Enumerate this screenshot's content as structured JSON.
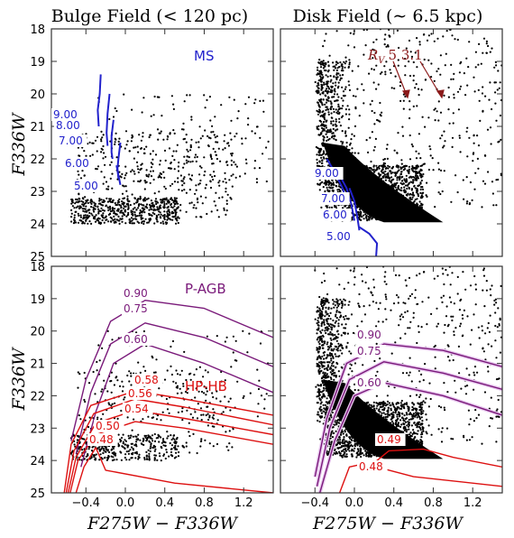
{
  "figure": {
    "titles": [
      "Bulge Field (< 120 pc)",
      "Disk Field (∼ 6.5 kpc)"
    ],
    "ylabel": "F336W",
    "xlabel": "F275W − F336W"
  },
  "chart_data": [
    {
      "panel": "top-left",
      "type": "scatter",
      "title": "Bulge Field (< 120 pc)",
      "xlabel": "",
      "ylabel": "F336W",
      "xlim": [
        -0.75,
        1.5
      ],
      "ylim": [
        25,
        18
      ],
      "y_inverted": true,
      "yticks": [
        18,
        19,
        20,
        21,
        22,
        23,
        24,
        25
      ],
      "annotations": [
        {
          "text": "MS",
          "color": "#2222cc"
        }
      ],
      "series": [
        {
          "kind": "stars",
          "note": "field stars, densest near F336W 23.5-24, colour -0.5 to 0.5",
          "count": 1000
        },
        {
          "kind": "isochrones",
          "color": "#2222cc",
          "labels": [
            "9.00",
            "8.00",
            "7.00",
            "6.00",
            "5.00"
          ],
          "curves": [
            {
              "label": "9.00",
              "points": [
                [
                  -0.25,
                  19.4
                ],
                [
                  -0.26,
                  20.0
                ],
                [
                  -0.28,
                  20.5
                ],
                [
                  -0.27,
                  21.0
                ]
              ]
            },
            {
              "label": "8.00",
              "points": [
                [
                  -0.16,
                  20.0
                ],
                [
                  -0.18,
                  20.6
                ],
                [
                  -0.19,
                  21.2
                ],
                [
                  -0.18,
                  21.6
                ]
              ]
            },
            {
              "label": "7.00",
              "points": [
                [
                  -0.12,
                  20.8
                ],
                [
                  -0.14,
                  21.3
                ],
                [
                  -0.14,
                  21.8
                ],
                [
                  -0.13,
                  22.0
                ]
              ]
            },
            {
              "label": "6.00",
              "points": [
                [
                  -0.05,
                  21.5
                ],
                [
                  -0.07,
                  22.0
                ],
                [
                  -0.08,
                  22.3
                ],
                [
                  -0.07,
                  22.6
                ]
              ]
            },
            {
              "label": "5.00",
              "points": [
                [
                  -0.09,
                  22.2
                ],
                [
                  -0.07,
                  22.5
                ],
                [
                  -0.05,
                  22.8
                ]
              ]
            }
          ]
        }
      ]
    },
    {
      "panel": "top-right",
      "type": "scatter",
      "title": "Disk Field (∼ 6.5 kpc)",
      "xlim": [
        -0.75,
        1.5
      ],
      "ylim": [
        25,
        18
      ],
      "y_inverted": true,
      "annotations": [
        {
          "text": "R_V 5 3.1",
          "color": "#8b1a1a",
          "arrows": [
            {
              "from": [
                0.42,
                19.6
              ],
              "to": [
                0.52,
                20.5
              ]
            },
            {
              "from": [
                0.7,
                19.6
              ],
              "to": [
                0.85,
                20.5
              ]
            }
          ]
        }
      ],
      "series": [
        {
          "kind": "stars",
          "note": "dense disk population; black region colour -0.35 to 0.8 at F336W 22-24",
          "count": 2200
        },
        {
          "kind": "isochrones",
          "color": "#2222cc",
          "labels": [
            "9.00",
            "7.00",
            "6.00",
            "5.00"
          ],
          "curves": [
            {
              "label": "9.00",
              "points": [
                [
                  -0.28,
                  22.0
                ],
                [
                  -0.2,
                  22.4
                ],
                [
                  -0.12,
                  22.9
                ],
                [
                  -0.08,
                  23.3
                ]
              ]
            },
            {
              "label": "7.00",
              "points": [
                [
                  -0.15,
                  22.5
                ],
                [
                  -0.08,
                  22.9
                ],
                [
                  -0.03,
                  23.4
                ],
                [
                  0.0,
                  23.9
                ]
              ]
            },
            {
              "label": "6.00",
              "points": [
                [
                  -0.05,
                  22.9
                ],
                [
                  0.0,
                  23.3
                ],
                [
                  0.03,
                  23.8
                ],
                [
                  0.05,
                  24.2
                ]
              ]
            },
            {
              "label": "5.00",
              "points": [
                [
                  0.05,
                  24.1
                ],
                [
                  0.15,
                  24.3
                ],
                [
                  0.23,
                  24.6
                ],
                [
                  0.22,
                  25.0
                ]
              ]
            }
          ]
        }
      ]
    },
    {
      "panel": "bottom-left",
      "type": "scatter",
      "xlabel": "F275W − F336W",
      "ylabel": "F336W",
      "xlim": [
        -0.75,
        1.5
      ],
      "ylim": [
        25,
        18
      ],
      "y_inverted": true,
      "xticks": [
        -0.4,
        0.0,
        0.4,
        0.8,
        1.2
      ],
      "yticks": [
        18,
        19,
        20,
        21,
        22,
        23,
        24,
        25
      ],
      "annotations": [
        {
          "text": "P-AGB",
          "color": "#7a1a7a"
        },
        {
          "text": "HP-HB",
          "color": "#dd1111"
        }
      ],
      "series": [
        {
          "kind": "stars",
          "count": 700
        },
        {
          "kind": "post-AGB tracks",
          "color": "#7a1a7a",
          "curves": [
            {
              "label": "0.90",
              "points": [
                [
                  -0.55,
                  23.4
                ],
                [
                  -0.4,
                  21.5
                ],
                [
                  -0.15,
                  19.7
                ],
                [
                  0.2,
                  19.05
                ],
                [
                  0.8,
                  19.3
                ],
                [
                  1.5,
                  20.2
                ]
              ]
            },
            {
              "label": "0.75",
              "points": [
                [
                  -0.5,
                  23.8
                ],
                [
                  -0.35,
                  21.9
                ],
                [
                  -0.15,
                  20.4
                ],
                [
                  0.2,
                  19.75
                ],
                [
                  0.8,
                  20.2
                ],
                [
                  1.5,
                  21.1
                ]
              ]
            },
            {
              "label": "0.60",
              "points": [
                [
                  -0.45,
                  24.2
                ],
                [
                  -0.3,
                  22.5
                ],
                [
                  -0.12,
                  21.0
                ],
                [
                  0.2,
                  20.4
                ],
                [
                  0.8,
                  21.0
                ],
                [
                  1.5,
                  21.9
                ]
              ]
            }
          ]
        },
        {
          "kind": "HP-HB tracks",
          "color": "#dd1111",
          "curves": [
            {
              "label": "0.58",
              "points": [
                [
                  -0.62,
                  25.0
                ],
                [
                  -0.55,
                  23.5
                ],
                [
                  -0.35,
                  22.3
                ],
                [
                  0.1,
                  21.85
                ],
                [
                  0.6,
                  22.1
                ],
                [
                  1.5,
                  22.6
                ]
              ]
            },
            {
              "label": "0.56",
              "points": [
                [
                  -0.6,
                  25.0
                ],
                [
                  -0.52,
                  23.7
                ],
                [
                  -0.32,
                  22.55
                ],
                [
                  0.1,
                  22.1
                ],
                [
                  0.6,
                  22.35
                ],
                [
                  1.5,
                  22.9
                ]
              ]
            },
            {
              "label": "0.54",
              "points": [
                [
                  -0.58,
                  25.0
                ],
                [
                  -0.5,
                  23.9
                ],
                [
                  -0.3,
                  22.85
                ],
                [
                  0.1,
                  22.45
                ],
                [
                  0.6,
                  22.7
                ],
                [
                  1.5,
                  23.2
                ]
              ]
            },
            {
              "label": "0.50",
              "points": [
                [
                  -0.56,
                  25.0
                ],
                [
                  -0.48,
                  24.0
                ],
                [
                  -0.3,
                  23.2
                ],
                [
                  0.1,
                  22.8
                ],
                [
                  0.6,
                  23.0
                ],
                [
                  1.5,
                  23.5
                ]
              ]
            },
            {
              "label": "0.48",
              "points": [
                [
                  -0.5,
                  25.0
                ],
                [
                  -0.42,
                  24.2
                ],
                [
                  -0.3,
                  23.6
                ],
                [
                  -0.2,
                  24.3
                ],
                [
                  0.5,
                  24.7
                ],
                [
                  1.5,
                  25.0
                ]
              ]
            }
          ]
        }
      ]
    },
    {
      "panel": "bottom-right",
      "type": "scatter",
      "xlabel": "F275W − F336W",
      "xlim": [
        -0.75,
        1.5
      ],
      "ylim": [
        25,
        18
      ],
      "y_inverted": true,
      "xticks": [
        -0.4,
        0.0,
        0.4,
        0.8,
        1.2
      ],
      "series": [
        {
          "kind": "stars",
          "count": 2200
        },
        {
          "kind": "post-AGB tracks",
          "color": "#7a1a7a",
          "curves": [
            {
              "label": "0.90",
              "points": [
                [
                  -0.4,
                  24.5
                ],
                [
                  -0.28,
                  22.7
                ],
                [
                  -0.08,
                  21.0
                ],
                [
                  0.3,
                  20.4
                ],
                [
                  0.9,
                  20.6
                ],
                [
                  1.5,
                  21.1
                ]
              ]
            },
            {
              "label": "0.75",
              "points": [
                [
                  -0.38,
                  24.8
                ],
                [
                  -0.25,
                  23.0
                ],
                [
                  -0.05,
                  21.5
                ],
                [
                  0.3,
                  20.95
                ],
                [
                  0.9,
                  21.3
                ],
                [
                  1.5,
                  21.8
                ]
              ]
            },
            {
              "label": "0.60",
              "points": [
                [
                  -0.35,
                  25.0
                ],
                [
                  -0.2,
                  23.4
                ],
                [
                  0.0,
                  22.0
                ],
                [
                  0.3,
                  21.6
                ],
                [
                  0.9,
                  22.0
                ],
                [
                  1.5,
                  22.6
                ]
              ]
            }
          ]
        },
        {
          "kind": "HP-HB tracks",
          "color": "#dd1111",
          "curves": [
            {
              "label": "0.49",
              "points": [
                [
                  0.15,
                  24.2
                ],
                [
                  0.35,
                  23.7
                ],
                [
                  0.7,
                  23.65
                ],
                [
                  1.0,
                  23.9
                ],
                [
                  1.5,
                  24.2
                ]
              ]
            },
            {
              "label": "0.48",
              "points": [
                [
                  -0.15,
                  25.0
                ],
                [
                  -0.05,
                  24.2
                ],
                [
                  0.1,
                  24.1
                ],
                [
                  0.6,
                  24.5
                ],
                [
                  1.5,
                  24.8
                ]
              ]
            }
          ]
        }
      ]
    }
  ],
  "labels": {
    "ms": "MS",
    "rv_prefix": "R",
    "rv_sub": "V",
    "rv_values": "5   3.1",
    "pagb": "P-AGB",
    "hphb": "HP-HB"
  },
  "isochrone_labels_tl": [
    "9.00",
    "8.00",
    "7.00",
    "6.00",
    "5.00"
  ],
  "isochrone_labels_tr": [
    "9.00",
    "7.00",
    "6.00",
    "5.00"
  ],
  "pagb_labels_bl": [
    "0.90",
    "0.75",
    "0.60"
  ],
  "hphb_labels_bl": [
    "0.58",
    "0.56",
    "0.54",
    "0.50",
    "0.48"
  ],
  "pagb_labels_br": [
    "0.90",
    "0.75",
    "0.60"
  ],
  "hphb_labels_br": [
    "0.49",
    "0.48"
  ],
  "xtick_labels": [
    "−0.4",
    "0.0",
    "0.4",
    "0.8",
    "1.2"
  ],
  "ytick_labels_top": [
    "18",
    "19",
    "20",
    "21",
    "22",
    "23",
    "24",
    "25"
  ],
  "ytick_labels_bottom": [
    "18",
    "19",
    "20",
    "21",
    "22",
    "23",
    "24",
    "25"
  ],
  "colors": {
    "stars": "#000000",
    "isochrone": "#2222cc",
    "pagb": "#7a1a7a",
    "hphb": "#dd1111",
    "rv": "#8b1a1a"
  }
}
